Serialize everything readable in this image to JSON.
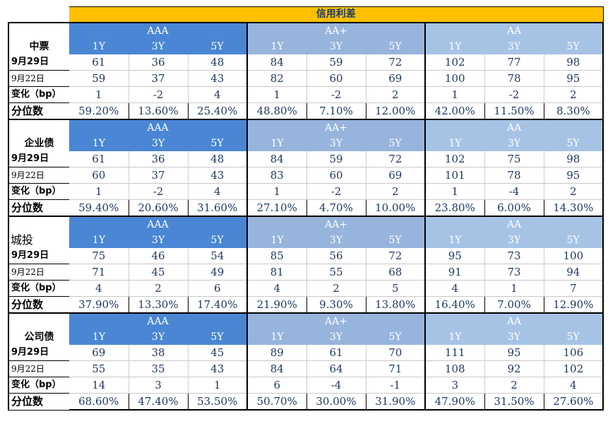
{
  "title": "信用利差",
  "ratings": [
    "AAA",
    "AA+",
    "AA"
  ],
  "tenors": [
    "1Y",
    "3Y",
    "5Y"
  ],
  "row_labels": {
    "current": "9月29日",
    "previous": "9月22日",
    "change": "变化（bp）",
    "percentile": "分位数"
  },
  "sections": [
    {
      "name": "中票",
      "current": [
        "61",
        "36",
        "48",
        "84",
        "59",
        "72",
        "102",
        "77",
        "98"
      ],
      "previous": [
        "59",
        "37",
        "43",
        "82",
        "60",
        "69",
        "100",
        "78",
        "95"
      ],
      "change": [
        "1",
        "-2",
        "4",
        "1",
        "-2",
        "2",
        "1",
        "-2",
        "2"
      ],
      "percentile": [
        "59.20%",
        "13.60%",
        "25.40%",
        "48.80%",
        "7.10%",
        "12.00%",
        "42.00%",
        "11.50%",
        "8.30%"
      ]
    },
    {
      "name": "企业债",
      "current": [
        "61",
        "36",
        "48",
        "84",
        "59",
        "72",
        "102",
        "75",
        "98"
      ],
      "previous": [
        "60",
        "37",
        "43",
        "83",
        "60",
        "69",
        "101",
        "78",
        "95"
      ],
      "change": [
        "1",
        "-2",
        "4",
        "1",
        "-2",
        "2",
        "1",
        "-4",
        "2"
      ],
      "percentile": [
        "59.40%",
        "20.60%",
        "31.60%",
        "27.10%",
        "4.70%",
        "10.00%",
        "23.80%",
        "6.00%",
        "14.30%"
      ]
    },
    {
      "name": "城投",
      "current": [
        "75",
        "46",
        "54",
        "85",
        "56",
        "72",
        "95",
        "73",
        "100"
      ],
      "previous": [
        "71",
        "45",
        "49",
        "81",
        "55",
        "68",
        "91",
        "73",
        "94"
      ],
      "change": [
        "4",
        "2",
        "6",
        "4",
        "2",
        "5",
        "4",
        "1",
        "7"
      ],
      "percentile": [
        "37.90%",
        "13.30%",
        "17.40%",
        "21.90%",
        "9.30%",
        "13.80%",
        "16.40%",
        "7.00%",
        "12.90%"
      ]
    },
    {
      "name": "公司债",
      "current": [
        "69",
        "38",
        "45",
        "89",
        "61",
        "70",
        "111",
        "95",
        "106"
      ],
      "previous": [
        "55",
        "35",
        "43",
        "84",
        "64",
        "71",
        "108",
        "92",
        "102"
      ],
      "change": [
        "14",
        "3",
        "1",
        "6",
        "-4",
        "-1",
        "3",
        "2",
        "4"
      ],
      "percentile": [
        "68.60%",
        "47.40%",
        "53.50%",
        "50.70%",
        "30.00%",
        "31.90%",
        "47.90%",
        "31.50%",
        "27.60%"
      ]
    }
  ],
  "colors": {
    "title_bg": "#ffc000",
    "aaa_bg": "#4a86d4",
    "aaplus_bg": "#97b4dc",
    "aa_bg": "#a6c3e6",
    "value_text": "#1f3864"
  }
}
